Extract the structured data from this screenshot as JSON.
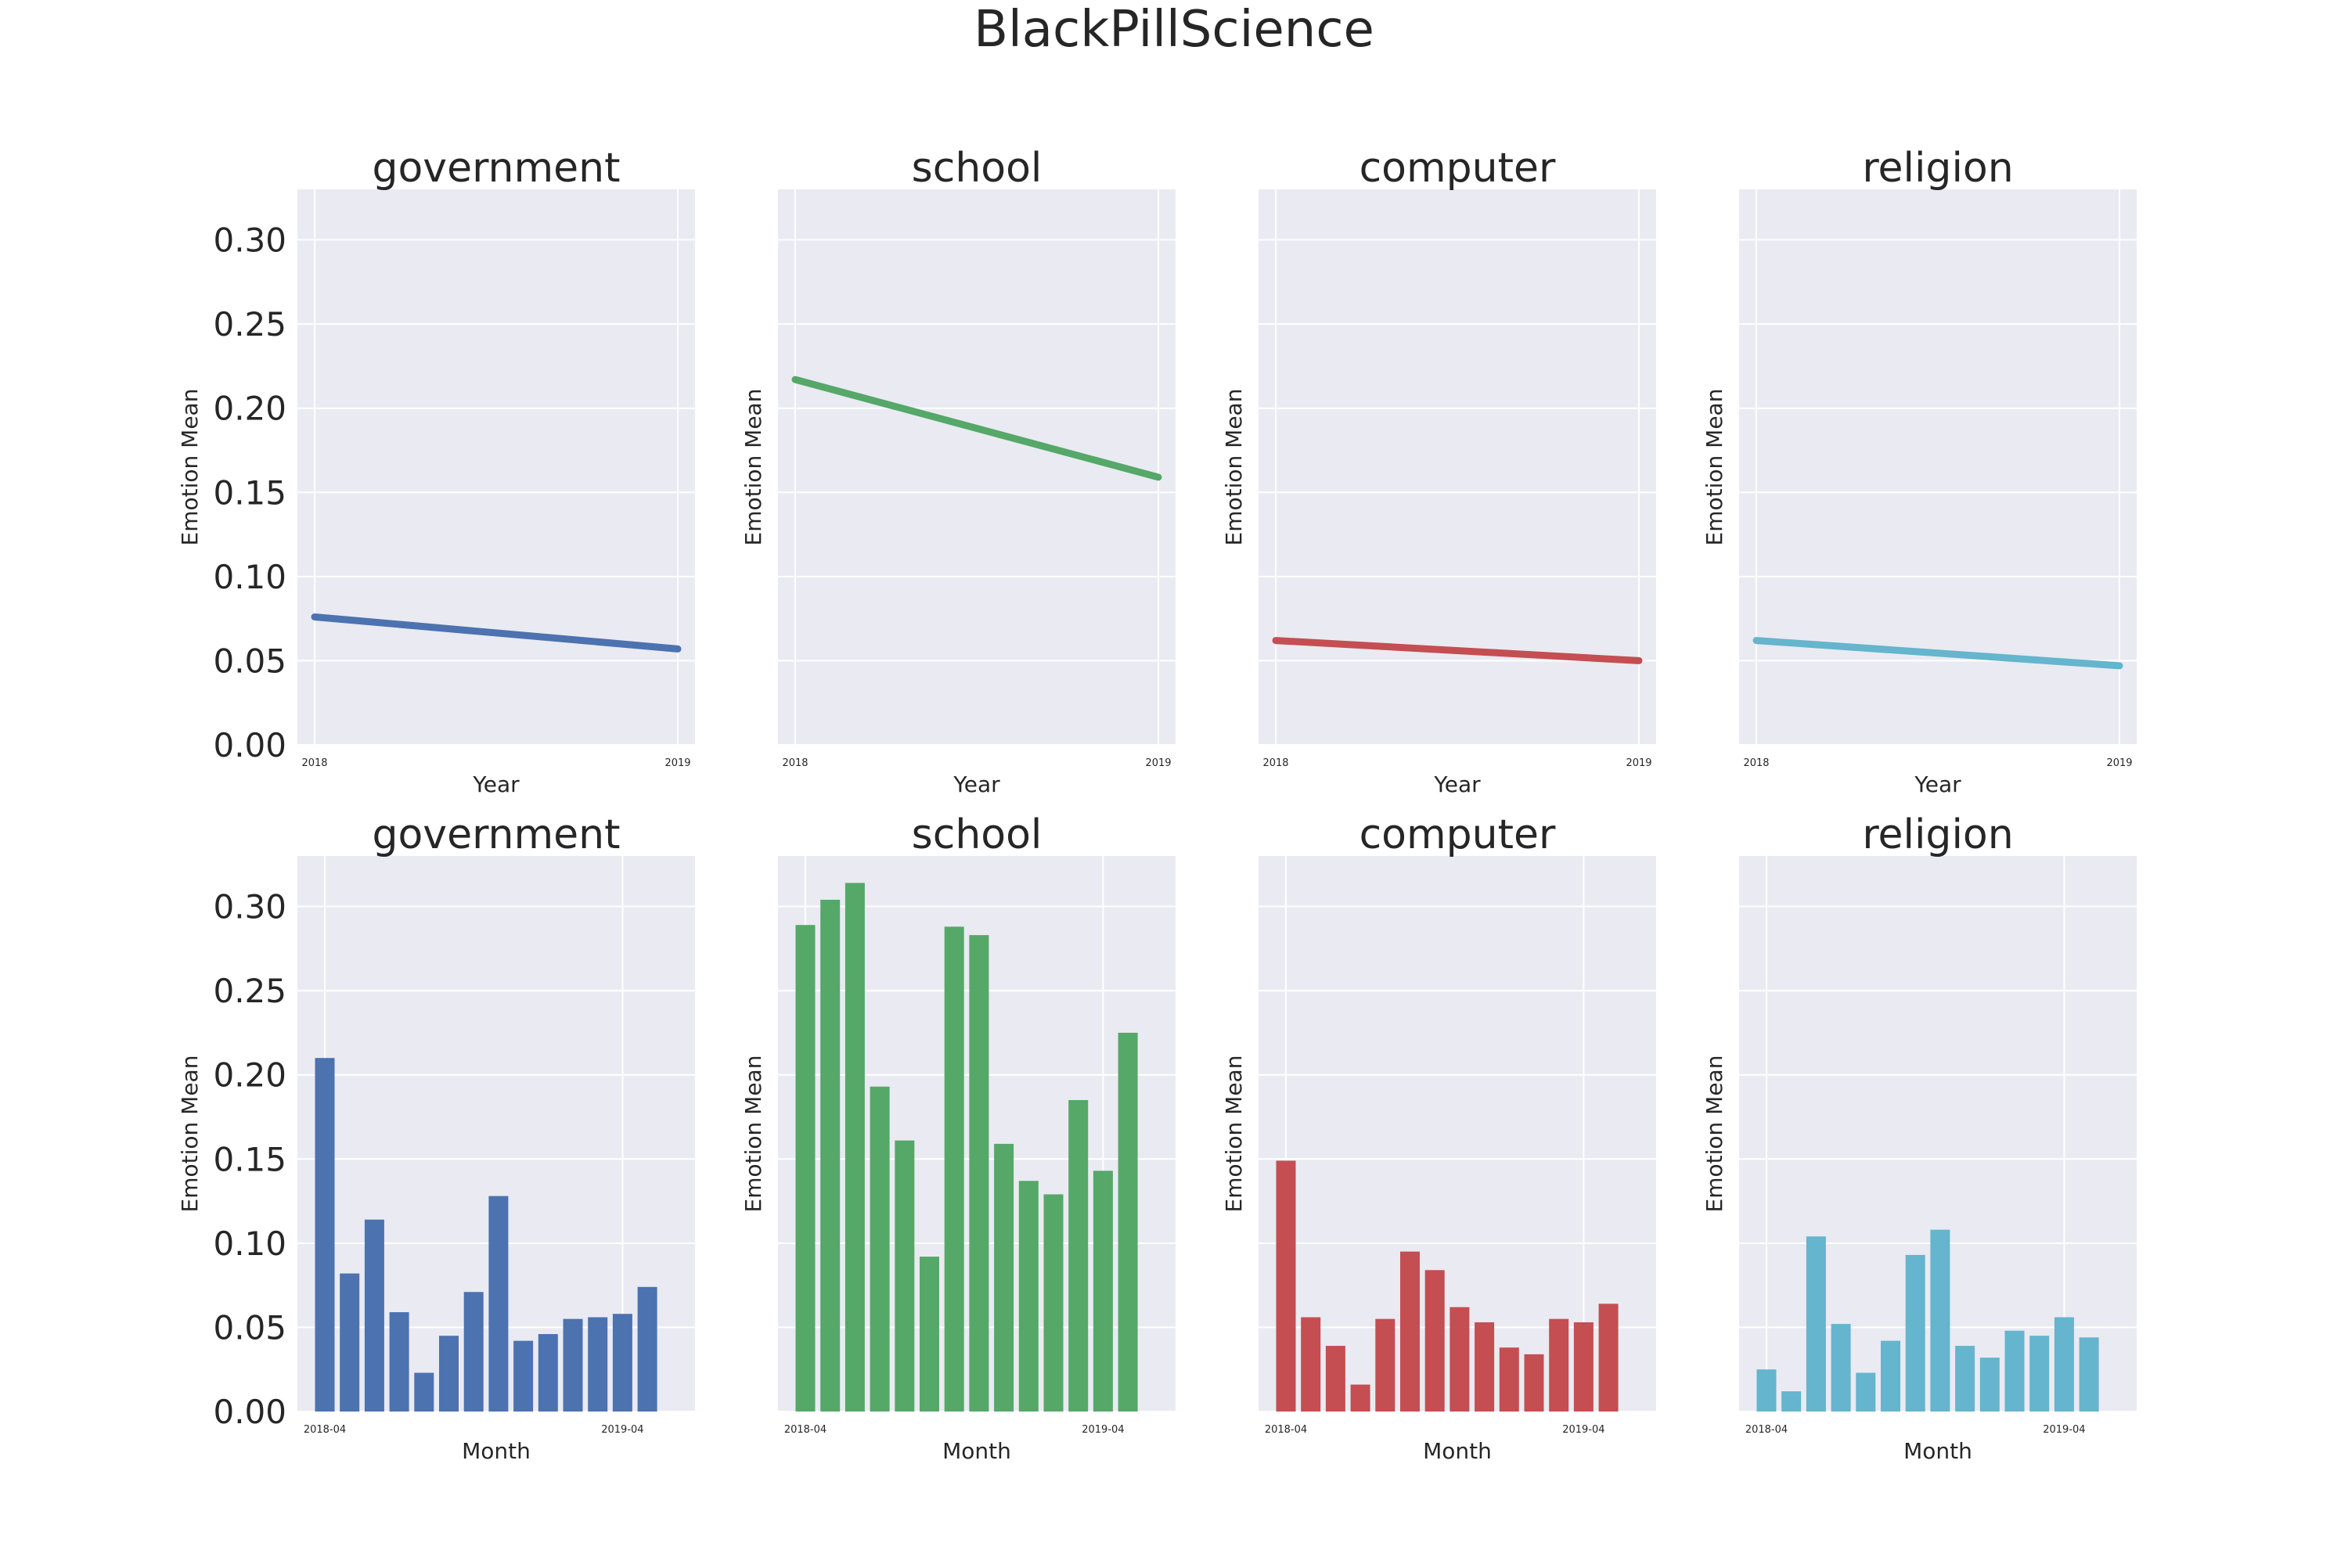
{
  "figure_title": "BlackPillScience",
  "colors": {
    "government": "#4C72B0",
    "school": "#55A868",
    "computer": "#C44E52",
    "religion": "#64B5CD",
    "axes_background": "#EAEAF2",
    "grid": "#FFFFFF"
  },
  "chart_data": [
    {
      "type": "line",
      "title": "government",
      "xlabel": "Year",
      "ylabel": "Emotion Mean",
      "x": [
        "2018",
        "2019"
      ],
      "values": [
        0.076,
        0.057
      ],
      "ylim": [
        0,
        0.33
      ],
      "yticks": [
        "0.00",
        "0.05",
        "0.10",
        "0.15",
        "0.20",
        "0.25",
        "0.30"
      ],
      "color": "#4C72B0",
      "grid": true
    },
    {
      "type": "line",
      "title": "school",
      "xlabel": "Year",
      "ylabel": "Emotion Mean",
      "x": [
        "2018",
        "2019"
      ],
      "values": [
        0.217,
        0.159
      ],
      "ylim": [
        0,
        0.33
      ],
      "color": "#55A868",
      "grid": true
    },
    {
      "type": "line",
      "title": "computer",
      "xlabel": "Year",
      "ylabel": "Emotion Mean",
      "x": [
        "2018",
        "2019"
      ],
      "values": [
        0.062,
        0.05
      ],
      "ylim": [
        0,
        0.33
      ],
      "color": "#C44E52",
      "grid": true
    },
    {
      "type": "line",
      "title": "religion",
      "xlabel": "Year",
      "ylabel": "Emotion Mean",
      "x": [
        "2018",
        "2019"
      ],
      "values": [
        0.062,
        0.047
      ],
      "ylim": [
        0,
        0.33
      ],
      "color": "#64B5CD",
      "grid": true
    },
    {
      "type": "bar",
      "title": "government",
      "xlabel": "Month",
      "ylabel": "Emotion Mean",
      "tick_labels": [
        "2018-04",
        "2019-04"
      ],
      "values": [
        0.21,
        0.082,
        0.114,
        0.059,
        0.023,
        0.045,
        0.071,
        0.128,
        0.042,
        0.046,
        0.055,
        0.056,
        0.058,
        0.074
      ],
      "ylim": [
        0,
        0.33
      ],
      "yticks": [
        "0.00",
        "0.05",
        "0.10",
        "0.15",
        "0.20",
        "0.25",
        "0.30"
      ],
      "color": "#4C72B0",
      "grid": true
    },
    {
      "type": "bar",
      "title": "school",
      "xlabel": "Month",
      "ylabel": "Emotion Mean",
      "tick_labels": [
        "2018-04",
        "2019-04"
      ],
      "values": [
        0.289,
        0.304,
        0.314,
        0.193,
        0.161,
        0.092,
        0.288,
        0.283,
        0.159,
        0.137,
        0.129,
        0.185,
        0.143,
        0.225
      ],
      "ylim": [
        0,
        0.33
      ],
      "color": "#55A868",
      "grid": true
    },
    {
      "type": "bar",
      "title": "computer",
      "xlabel": "Month",
      "ylabel": "Emotion Mean",
      "tick_labels": [
        "2018-04",
        "2019-04"
      ],
      "values": [
        0.149,
        0.056,
        0.039,
        0.016,
        0.055,
        0.095,
        0.084,
        0.062,
        0.053,
        0.038,
        0.034,
        0.055,
        0.053,
        0.064
      ],
      "ylim": [
        0,
        0.33
      ],
      "color": "#C44E52",
      "grid": true
    },
    {
      "type": "bar",
      "title": "religion",
      "xlabel": "Month",
      "ylabel": "Emotion Mean",
      "tick_labels": [
        "2018-04",
        "2019-04"
      ],
      "values": [
        0.025,
        0.012,
        0.104,
        0.052,
        0.023,
        0.042,
        0.093,
        0.108,
        0.039,
        0.032,
        0.048,
        0.045,
        0.056,
        0.044
      ],
      "ylim": [
        0,
        0.33
      ],
      "color": "#64B5CD",
      "grid": true
    }
  ]
}
